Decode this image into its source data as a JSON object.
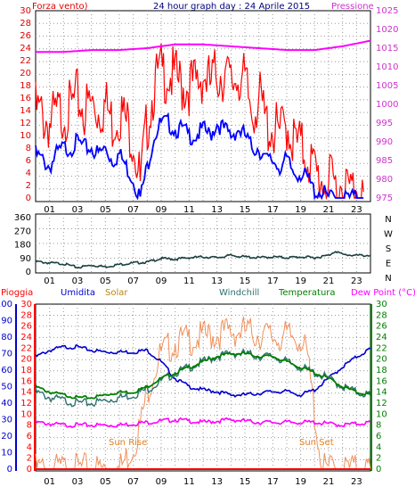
{
  "panel1": {
    "title": "24 hour graph day : 24 Aprile 2015",
    "left_label": "Forza vento)",
    "right_label": "Pressione",
    "colors": {
      "left_label": "#e00000",
      "right_label": "#cc33cc",
      "title": "#000080",
      "gust": "#ff0000",
      "speed": "#0000ff",
      "pressure": "#ff00ff"
    },
    "left_ticks": [
      "30",
      "28",
      "26",
      "24",
      "22",
      "20",
      "18",
      "16",
      "14",
      "12",
      "10",
      "8",
      "6",
      "4",
      "2",
      "0"
    ],
    "right_ticks": [
      "1025",
      "1020",
      "1015",
      "1010",
      "1005",
      "1000",
      "995",
      "990",
      "985",
      "980",
      "975"
    ],
    "x_ticks": [
      "01",
      "03",
      "05",
      "07",
      "09",
      "11",
      "13",
      "15",
      "17",
      "19",
      "21",
      "23"
    ]
  },
  "panel2": {
    "y_ticks": [
      "360",
      "270",
      "180",
      "90",
      "0"
    ],
    "compass": [
      "N",
      "W",
      "S",
      "E",
      "N"
    ],
    "colors": {
      "direction": "#1b4040"
    },
    "x_ticks": [
      "01",
      "03",
      "05",
      "07",
      "09",
      "11",
      "13",
      "15",
      "17",
      "19",
      "21",
      "23"
    ]
  },
  "panel3": {
    "headers": {
      "pioggia": "Pioggia",
      "umidita": "Umidita",
      "solar": "Solar",
      "windchill": "Windchill",
      "temperatura": "Temperatura",
      "dewpoint": "Dew Point (°C)"
    },
    "header_colors": {
      "pioggia": "#ff0000",
      "umidita": "#0000cc",
      "solar": "#b8860b",
      "windchill": "#2e7070",
      "temperatura": "#008000",
      "dewpoint": "#ff00ff"
    },
    "left_blue_ticks": [
      "100",
      "90",
      "80",
      "70",
      "60",
      "50",
      "40",
      "30",
      "20",
      "10",
      "0"
    ],
    "left_red_ticks": [
      "30",
      "28",
      "26",
      "24",
      "22",
      "20",
      "18",
      "16",
      "14",
      "12",
      "10",
      "8",
      "6",
      "4",
      "2",
      "0"
    ],
    "right_ticks": [
      "30",
      "28",
      "26",
      "24",
      "22",
      "20",
      "18",
      "16",
      "14",
      "12",
      "10",
      "8",
      "6",
      "4",
      "2",
      "0"
    ],
    "annotations": {
      "sunrise": "Sun Rise",
      "sunset": "Sun Set"
    },
    "x_ticks": [
      "01",
      "03",
      "05",
      "07",
      "09",
      "11",
      "13",
      "15",
      "17",
      "19",
      "21",
      "23"
    ]
  },
  "chart_data": [
    {
      "type": "line",
      "title": "24 hour graph day : 24 Aprile 2015",
      "x_range": [
        0,
        24
      ],
      "ylim": [
        0,
        30
      ],
      "y2lim": [
        975,
        1025
      ],
      "series": [
        {
          "name": "Forza vento)",
          "x": [
            0,
            0.5,
            1,
            1.5,
            2,
            2.5,
            3,
            3.5,
            4,
            4.5,
            5,
            5.5,
            6,
            6.5,
            7,
            7.5,
            8,
            8.5,
            9,
            9.5,
            10,
            10.5,
            11,
            11.5,
            12,
            12.5,
            13,
            13.5,
            14,
            14.5,
            15,
            15.5,
            16,
            16.5,
            17,
            17.5,
            18,
            18.5,
            19,
            19.5,
            20,
            20.5,
            21,
            21.5,
            22,
            22.5,
            23,
            23.5
          ],
          "values": [
            14,
            13,
            12,
            13,
            14,
            14,
            16,
            14,
            15,
            14,
            15,
            12,
            14,
            12,
            10,
            2,
            12,
            18,
            20,
            20,
            19,
            18,
            18,
            18,
            20,
            18,
            20,
            20,
            18,
            20,
            18,
            14,
            16,
            12,
            11,
            10,
            12,
            9,
            8,
            7,
            4,
            3,
            2,
            2,
            2,
            1,
            2,
            1
          ]
        },
        {
          "name": "speed",
          "x": [
            0,
            0.5,
            1,
            1.5,
            2,
            2.5,
            3,
            3.5,
            4,
            4.5,
            5,
            5.5,
            6,
            6.5,
            7,
            7.5,
            8,
            8.5,
            9,
            9.5,
            10,
            10.5,
            11,
            11.5,
            12,
            12.5,
            13,
            13.5,
            14,
            14.5,
            15,
            15.5,
            16,
            16.5,
            17,
            17.5,
            18,
            18.5,
            19,
            19.5,
            20,
            20.5,
            21,
            21.5,
            22,
            22.5,
            23,
            23.5
          ],
          "values": [
            7,
            6,
            5,
            7,
            8,
            8,
            9,
            8,
            8,
            7,
            8,
            6,
            7,
            5,
            3,
            0,
            5,
            10,
            12,
            12,
            11,
            11,
            10,
            10,
            11,
            10,
            12,
            11,
            10,
            11,
            10,
            8,
            8,
            6,
            6,
            5,
            6,
            4,
            4,
            3,
            1,
            1,
            0,
            0,
            0,
            0,
            0,
            0
          ]
        },
        {
          "name": "Pressione",
          "axis": "y2",
          "x": [
            0,
            2,
            4,
            6,
            8,
            10,
            12,
            14,
            16,
            18,
            20,
            22,
            24
          ],
          "values": [
            1014,
            1014,
            1014.5,
            1014.5,
            1015,
            1016,
            1016,
            1015.5,
            1015,
            1014.5,
            1014.5,
            1015.5,
            1017
          ]
        }
      ]
    },
    {
      "type": "line",
      "x_range": [
        0,
        24
      ],
      "ylim": [
        0,
        360
      ],
      "series": [
        {
          "name": "direction",
          "x": [
            0,
            1,
            2,
            3,
            4,
            5,
            6,
            7,
            8,
            9,
            10,
            11,
            12,
            13,
            14,
            15,
            16,
            17,
            18,
            19,
            20,
            21,
            21.5,
            22,
            23,
            24
          ],
          "values": [
            70,
            60,
            55,
            30,
            45,
            35,
            50,
            60,
            65,
            90,
            85,
            95,
            100,
            95,
            110,
            100,
            95,
            100,
            95,
            100,
            95,
            110,
            140,
            115,
            110,
            110
          ]
        }
      ]
    },
    {
      "type": "line",
      "x_range": [
        0,
        24
      ],
      "ylim_humidity": [
        0,
        100
      ],
      "ylim_temperature": [
        0,
        30
      ],
      "series": [
        {
          "name": "Umidita",
          "x": [
            0,
            1,
            2,
            3,
            4,
            5,
            6,
            7,
            8,
            9,
            10,
            11,
            12,
            13,
            14,
            15,
            16,
            17,
            18,
            19,
            20,
            21,
            22,
            23,
            24
          ],
          "values": [
            68,
            72,
            74,
            74,
            72,
            71,
            71,
            71,
            72,
            65,
            55,
            50,
            48,
            47,
            45,
            45,
            46,
            47,
            47,
            45,
            48,
            55,
            62,
            68,
            73
          ]
        },
        {
          "name": "Temperatura",
          "x": [
            0,
            1,
            2,
            3,
            4,
            5,
            6,
            7,
            8,
            9,
            10,
            11,
            12,
            13,
            14,
            15,
            16,
            17,
            18,
            19,
            20,
            21,
            22,
            23,
            24
          ],
          "values": [
            15,
            14,
            13.5,
            13,
            13,
            13.5,
            14,
            14,
            15,
            16.5,
            17.5,
            18.5,
            19.5,
            20.5,
            21,
            21,
            20.5,
            20.5,
            19.5,
            18.5,
            17.5,
            16.5,
            15,
            14,
            13.5
          ]
        },
        {
          "name": "Windchill",
          "x": [
            0,
            1,
            2,
            3,
            4,
            5,
            6,
            7,
            8,
            9,
            10,
            11,
            12,
            13,
            14,
            15,
            16,
            17,
            18,
            19,
            20,
            21,
            22,
            23,
            24
          ],
          "values": [
            14,
            13,
            12.5,
            12,
            12,
            12.5,
            13,
            13.5,
            14.5,
            16,
            17.5,
            18.5,
            19.5,
            20.5,
            21,
            21,
            20.5,
            20.5,
            19.5,
            18.5,
            17.5,
            16.5,
            15,
            14,
            13.5
          ]
        },
        {
          "name": "Dew Point (°C)",
          "x": [
            0,
            2,
            4,
            6,
            8,
            10,
            12,
            14,
            16,
            18,
            20,
            22,
            24
          ],
          "values": [
            8.5,
            8,
            8,
            8,
            8.5,
            9,
            8.5,
            9,
            8.5,
            8.5,
            8.5,
            8,
            8.5
          ]
        },
        {
          "name": "Solar",
          "x": [
            0,
            6,
            6.5,
            7,
            7.5,
            8,
            8.5,
            9,
            9.5,
            10,
            11,
            12,
            13,
            14,
            15,
            16,
            17,
            18,
            19,
            19.5,
            20,
            20.5,
            24
          ],
          "values": [
            0,
            0,
            2,
            4,
            8,
            14,
            18,
            21,
            22,
            23,
            23.5,
            24,
            24.5,
            25,
            25,
            24.5,
            24,
            24,
            24,
            20,
            10,
            0,
            0
          ]
        },
        {
          "name": "Pioggia",
          "x": [
            0,
            24
          ],
          "values": [
            0,
            0
          ]
        }
      ]
    }
  ]
}
